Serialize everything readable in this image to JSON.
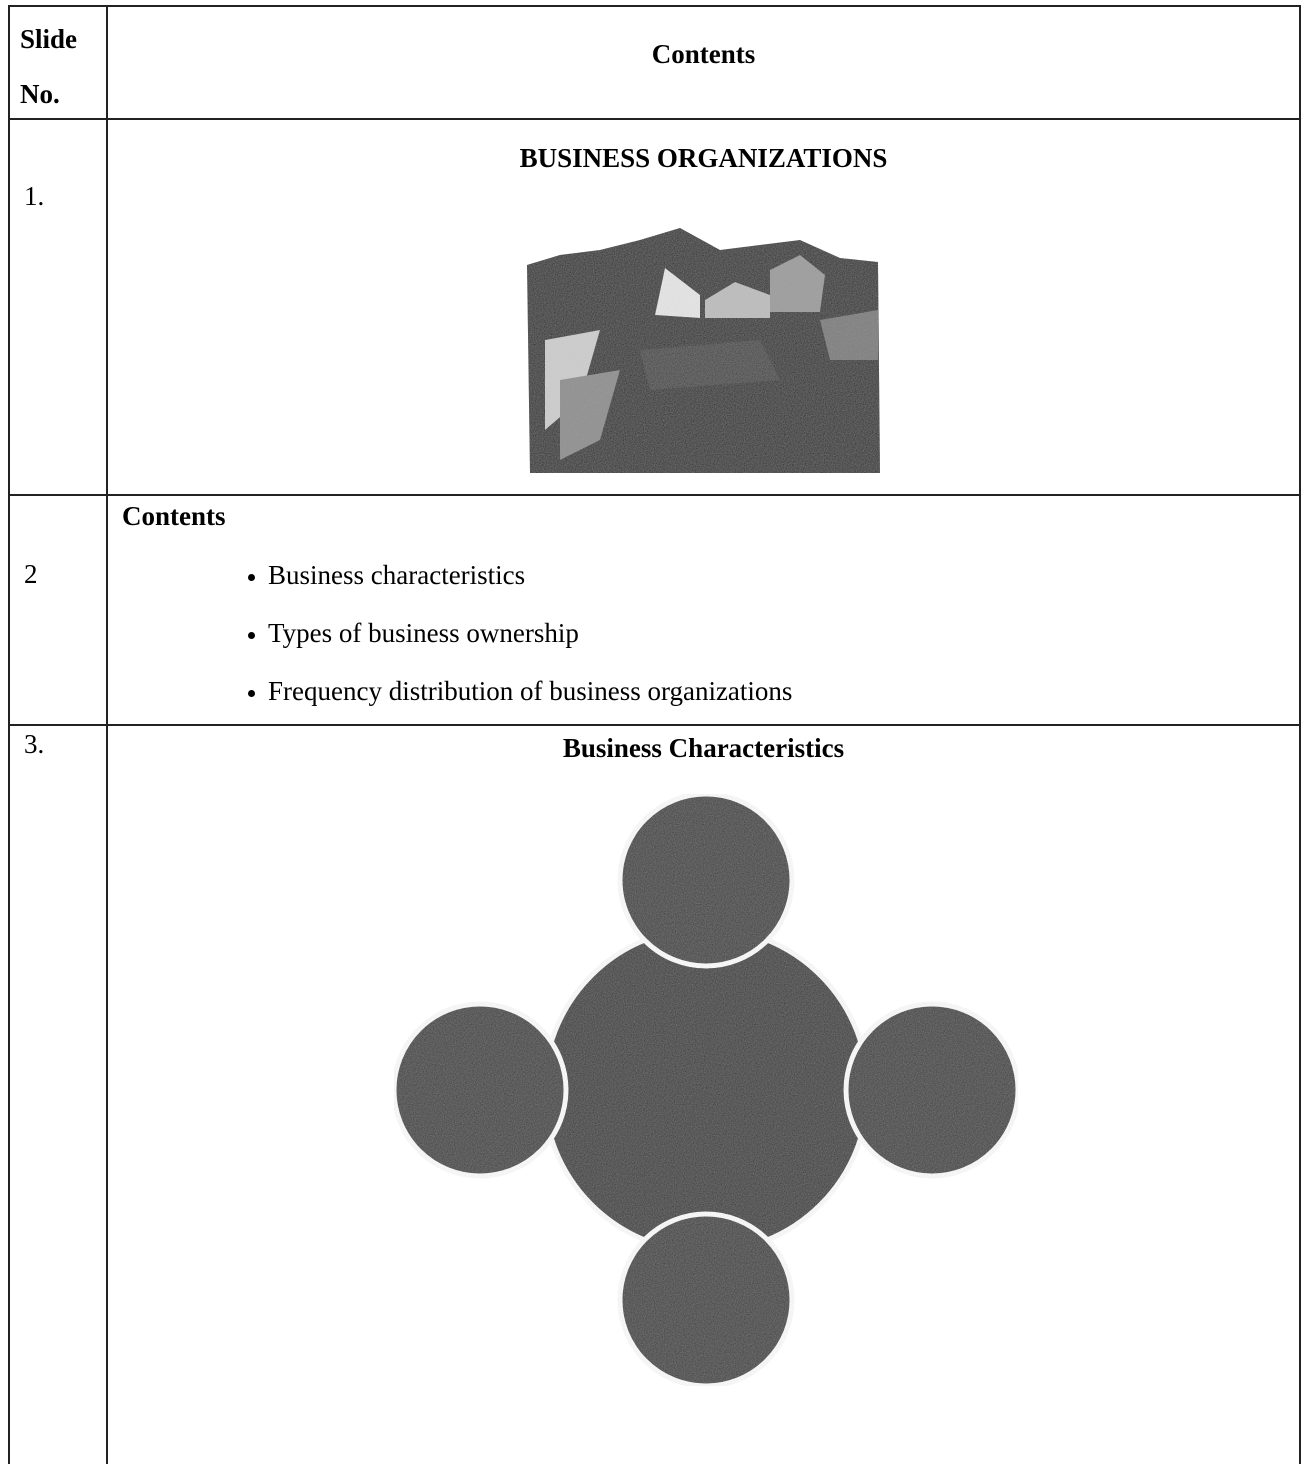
{
  "table": {
    "header": [
      "Slide No.",
      "Contents"
    ],
    "rows": [
      {
        "slide": "1.",
        "title": "BUSINESS ORGANIZATIONS"
      },
      {
        "slide": "2",
        "title": "Contents",
        "bullets": [
          "Business characteristics",
          "Types of business ownership",
          "Frequency distribution of business organizations"
        ]
      },
      {
        "slide": "3.",
        "title": "Business Characteristics"
      }
    ]
  }
}
